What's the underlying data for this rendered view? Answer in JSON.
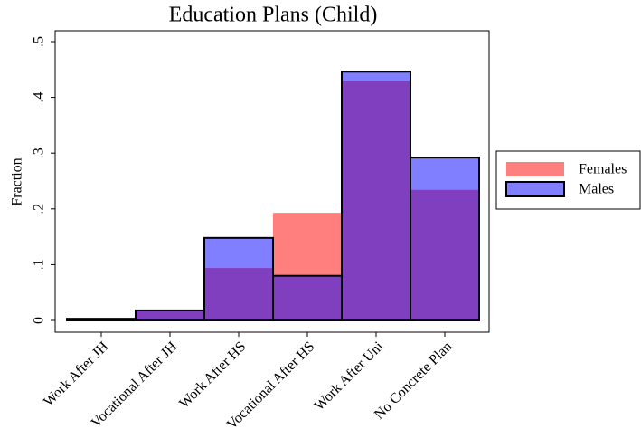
{
  "chart_data": {
    "type": "bar",
    "title": "Education Plans (Child)",
    "ylabel": "Fraction",
    "categories": [
      "Work After JH",
      "Vocational After JH",
      "Work After HS",
      "Vocational After HS",
      "Work After Uni",
      "No Concrete Plan"
    ],
    "series": [
      {
        "name": "Females",
        "color": "#ff0000",
        "values": [
          0.003,
          0.018,
          0.094,
          0.193,
          0.43,
          0.234
        ]
      },
      {
        "name": "Males",
        "color": "#0000ff",
        "values": [
          0.003,
          0.018,
          0.148,
          0.08,
          0.446,
          0.292
        ]
      }
    ],
    "ylim": [
      0,
      0.5
    ],
    "yticks": [
      0,
      {
        "value": 0.1,
        "label": ".1"
      },
      {
        "value": 0.2,
        "label": ".2"
      },
      {
        "value": 0.3,
        "label": ".3"
      },
      {
        "value": 0.4,
        "label": ".4"
      },
      {
        "value": 0.5,
        "label": ".5"
      }
    ],
    "legend": "right"
  }
}
